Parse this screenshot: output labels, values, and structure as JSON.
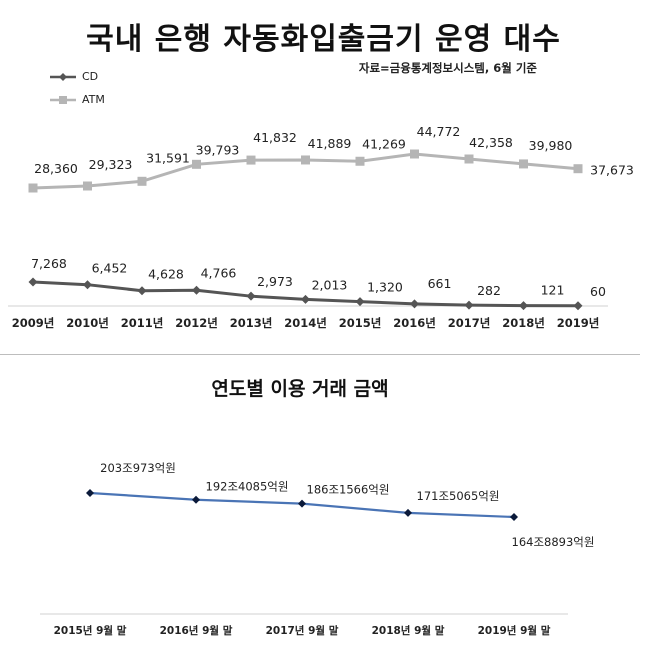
{
  "chart_data": [
    {
      "type": "line",
      "title": "국내 은행 자동화입출금기 운영 대수",
      "subtitle": "자료=금융통계정보시스템, 6월 기준",
      "categories": [
        "2009년",
        "2010년",
        "2011년",
        "2012년",
        "2013년",
        "2014년",
        "2015년",
        "2016년",
        "2017년",
        "2018년",
        "2019년"
      ],
      "series": [
        {
          "name": "CD",
          "color": "#555555",
          "values": [
            7268,
            6452,
            4628,
            4766,
            2973,
            2013,
            1320,
            661,
            282,
            121,
            60
          ],
          "labels": [
            "7,268",
            "6,452",
            "4,628",
            "4,766",
            "2,973",
            "2,013",
            "1,320",
            "661",
            "282",
            "121",
            "60"
          ]
        },
        {
          "name": "ATM",
          "color": "#b5b5b5",
          "values": [
            28360,
            29323,
            31591,
            39793,
            41832,
            41889,
            41269,
            44772,
            42358,
            39980,
            37673
          ],
          "labels": [
            "28,360",
            "29,323",
            "31,591",
            "39,793",
            "41,832",
            "41,889",
            "41,269",
            "44,772",
            "42,358",
            "39,980",
            "37,673"
          ]
        }
      ],
      "legend": "top-left",
      "grid": false
    },
    {
      "type": "line",
      "title": "연도별 이용 거래 금액",
      "categories": [
        "2015년 9월 말",
        "2016년 9월 말",
        "2017년 9월 말",
        "2018년 9월 말",
        "2019년 9월 말"
      ],
      "series": [
        {
          "color": "#4a74b5",
          "values": [
            203.0973,
            192.4085,
            186.1566,
            171.5065,
            164.8893
          ],
          "labels": [
            "203조973억원",
            "192조4085억원",
            "186조1566억원",
            "171조5065억원",
            "164조8893억원"
          ]
        }
      ],
      "grid": false
    }
  ]
}
